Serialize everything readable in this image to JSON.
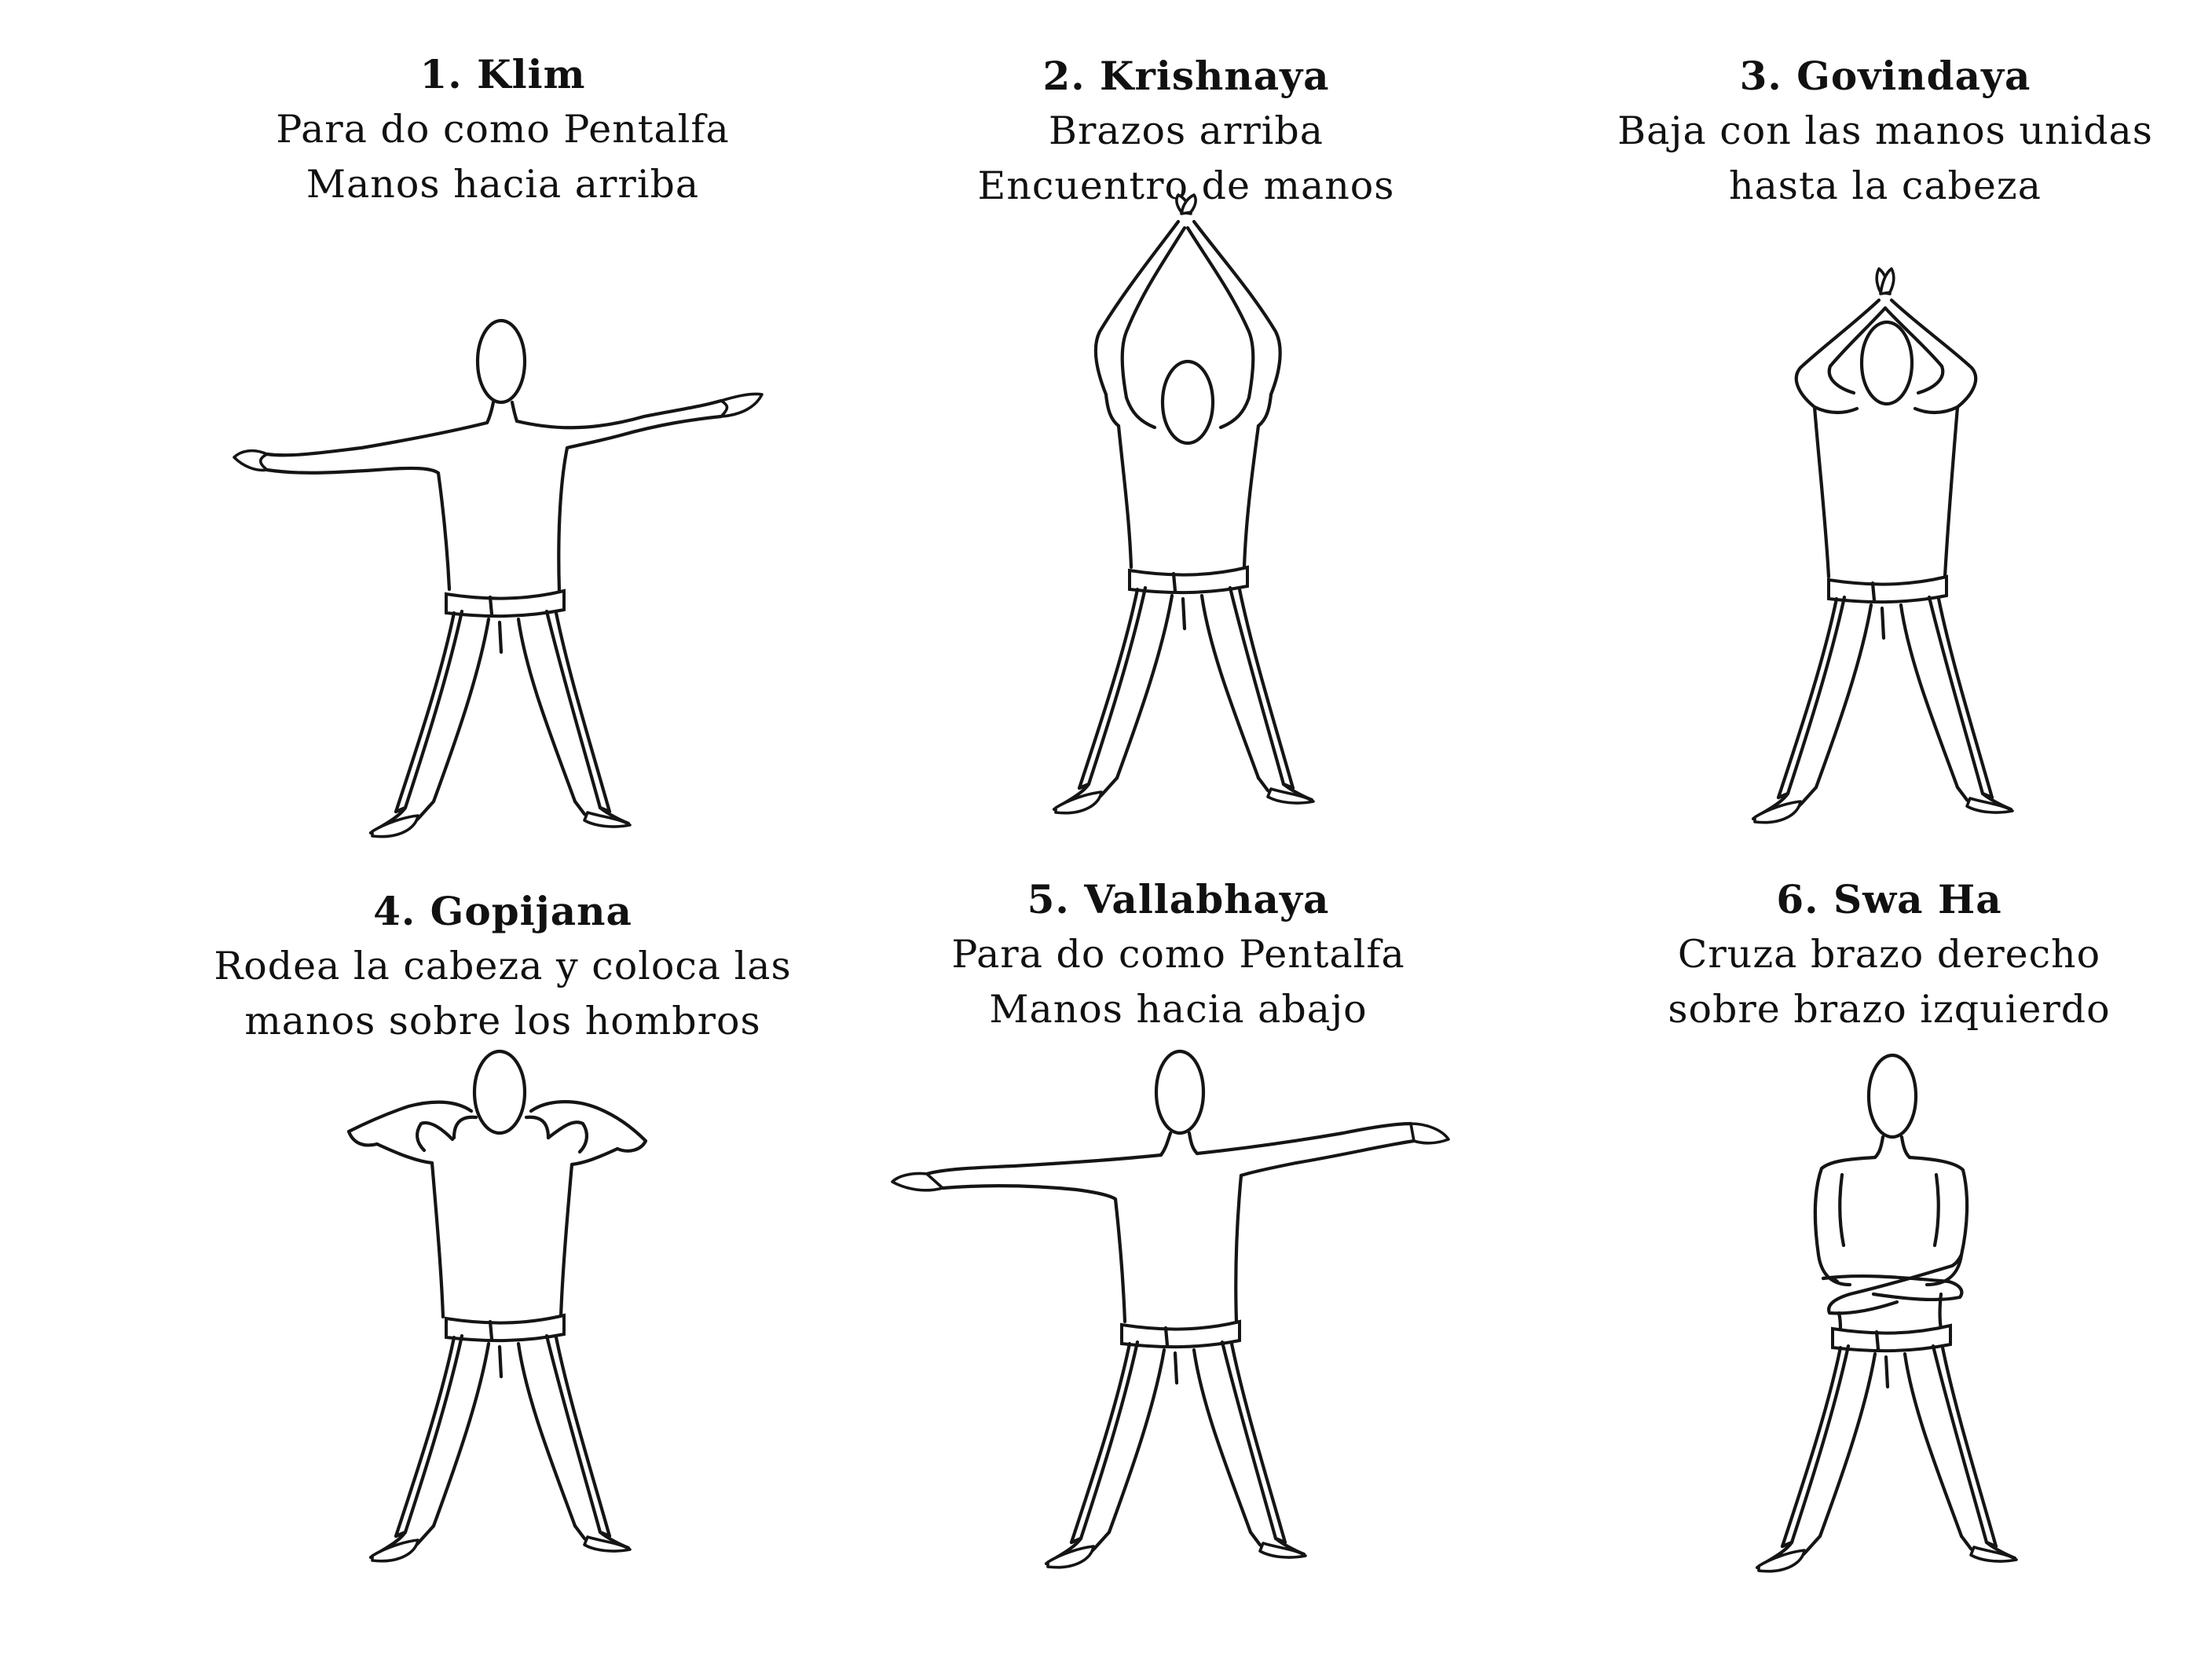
{
  "panels": [
    {
      "title": "1. Klim",
      "line1": "Para do como Pentalfa",
      "line2": "Manos hacia arriba",
      "pose": "arms-out-palms-up-figure-icon"
    },
    {
      "title": "2. Krishnaya",
      "line1": "Brazos arriba",
      "line2": "Encuentro de manos",
      "pose": "arms-raised-hands-joined-figure-icon"
    },
    {
      "title": "3. Govindaya",
      "line1": "Baja con las manos unidas",
      "line2": "hasta la cabeza",
      "pose": "joined-hands-above-head-figure-icon"
    },
    {
      "title": "4. Gopijana",
      "line1": "Rodea la cabeza y coloca las",
      "line2": "manos sobre los hombros",
      "pose": "hands-on-shoulders-figure-icon"
    },
    {
      "title": "5. Vallabhaya",
      "line1": "Para do como Pentalfa",
      "line2": "Manos hacia abajo",
      "pose": "arms-out-palms-down-figure-icon"
    },
    {
      "title": "6. Swa Ha",
      "line1": "Cruza brazo derecho",
      "line2": "sobre brazo izquierdo",
      "pose": "arms-crossed-low-figure-icon"
    }
  ]
}
